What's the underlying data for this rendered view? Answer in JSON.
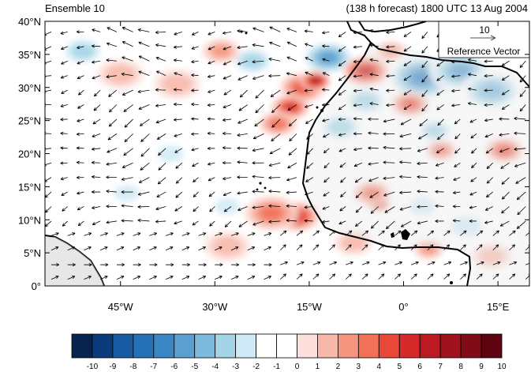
{
  "header": {
    "left_title": "Ensemble 10",
    "right_title": "(138 h forecast) 1800 UTC 13 Aug 2004"
  },
  "map": {
    "lat_labels": [
      "40°N",
      "35°N",
      "30°N",
      "25°N",
      "20°N",
      "15°N",
      "10°N",
      "5°N",
      "0°"
    ],
    "lon_labels": [
      "45°W",
      "30°W",
      "15°W",
      "0°",
      "15°E"
    ],
    "lon_range": [
      -57,
      20
    ],
    "lat_range": [
      0,
      40
    ],
    "land_color": "#d0d0d0",
    "coast_color": "#000000"
  },
  "reference_vector": {
    "magnitude_label": "10",
    "caption": "Reference Vector"
  },
  "colorbar": {
    "ticks": [
      "-10",
      "-9",
      "-8",
      "-7",
      "-6",
      "-5",
      "-4",
      "-3",
      "-2",
      "-1",
      "0",
      "1",
      "2",
      "3",
      "4",
      "5",
      "6",
      "7",
      "8",
      "9",
      "10"
    ],
    "colors": [
      "#08234d",
      "#0b3b7a",
      "#1a5ca3",
      "#2471b5",
      "#3a86c2",
      "#5a9fd0",
      "#7dbadc",
      "#a5d4e6",
      "#cfeaf6",
      "#ffffff",
      "#ffffff",
      "#fde0dc",
      "#f8b9aa",
      "#f59580",
      "#f07058",
      "#e8483a",
      "#d52a2a",
      "#bb1a22",
      "#9e121e",
      "#800c18",
      "#5d0410"
    ]
  },
  "anomalies": [
    {
      "lon": 3,
      "lat": 31.5,
      "r": 4.5,
      "v": -6
    },
    {
      "lon": 9,
      "lat": 32.5,
      "r": 4.0,
      "v": -5
    },
    {
      "lon": 14,
      "lat": 29.5,
      "r": 4.0,
      "v": -4
    },
    {
      "lon": -6,
      "lat": 28,
      "r": 3.0,
      "v": -3
    },
    {
      "lon": -12,
      "lat": 34.5,
      "r": 3.5,
      "v": -5
    },
    {
      "lon": -24,
      "lat": 34,
      "r": 3.0,
      "v": -3
    },
    {
      "lon": -10,
      "lat": 24,
      "r": 3.0,
      "v": -3
    },
    {
      "lon": 5,
      "lat": 23.5,
      "r": 2.5,
      "v": -3
    },
    {
      "lon": -37,
      "lat": 20,
      "r": 2.5,
      "v": -2
    },
    {
      "lon": -28,
      "lat": 12,
      "r": 2.5,
      "v": -2
    },
    {
      "lon": 3,
      "lat": 12,
      "r": 2.5,
      "v": -2
    },
    {
      "lon": 10,
      "lat": 9,
      "r": 3.0,
      "v": -2
    },
    {
      "lon": -44,
      "lat": 14,
      "r": 2.5,
      "v": -2
    },
    {
      "lon": -51,
      "lat": 35.5,
      "r": 3.0,
      "v": -3
    },
    {
      "lon": -16,
      "lat": 30,
      "r": 3.0,
      "v": 5
    },
    {
      "lon": -14,
      "lat": 31,
      "r": 2.0,
      "v": 8
    },
    {
      "lon": -18,
      "lat": 27,
      "r": 2.5,
      "v": 6
    },
    {
      "lon": -20,
      "lat": 24.5,
      "r": 2.5,
      "v": 4
    },
    {
      "lon": -6,
      "lat": 32.5,
      "r": 3.0,
      "v": 7
    },
    {
      "lon": -2,
      "lat": 35.5,
      "r": 2.0,
      "v": 3
    },
    {
      "lon": -17,
      "lat": 10.5,
      "r": 3.0,
      "v": 6
    },
    {
      "lon": -21,
      "lat": 11,
      "r": 3.5,
      "v": 4
    },
    {
      "lon": -4,
      "lat": 12.5,
      "r": 1.5,
      "v": 9
    },
    {
      "lon": -5,
      "lat": 14,
      "r": 2.5,
      "v": 4
    },
    {
      "lon": 1,
      "lat": 27.5,
      "r": 2.5,
      "v": 5
    },
    {
      "lon": 6,
      "lat": 20.5,
      "r": 2.0,
      "v": 4
    },
    {
      "lon": 16,
      "lat": 20.5,
      "r": 2.5,
      "v": 5
    },
    {
      "lon": -29,
      "lat": 35.5,
      "r": 2.5,
      "v": 3
    },
    {
      "lon": -36,
      "lat": 30.5,
      "r": 3.0,
      "v": 2
    },
    {
      "lon": -45,
      "lat": 32,
      "r": 3.0,
      "v": 2
    },
    {
      "lon": -8,
      "lat": 6.5,
      "r": 2.5,
      "v": 2
    },
    {
      "lon": 4,
      "lat": 5.5,
      "r": 2.0,
      "v": 3
    },
    {
      "lon": -28,
      "lat": 6,
      "r": 3.0,
      "v": 2
    },
    {
      "lon": 14,
      "lat": 4.5,
      "r": 2.5,
      "v": 2
    }
  ]
}
